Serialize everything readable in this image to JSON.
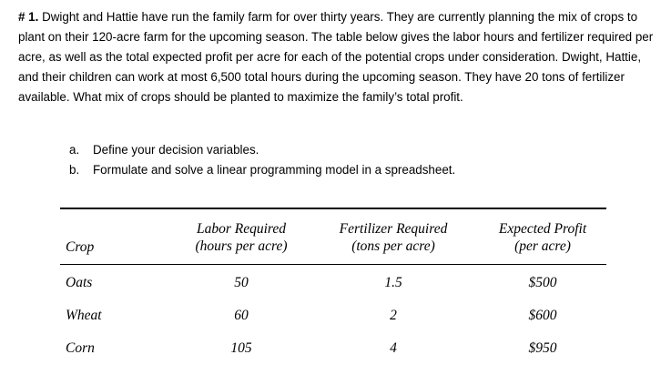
{
  "problem": {
    "number": "# 1.",
    "text": "Dwight and Hattie have run the family farm for over thirty years. They are currently planning the mix of crops to plant on their 120-acre farm for the upcoming season. The table below gives the labor hours and fertilizer required per acre, as well as the total expected profit per acre for each of the potential crops under consideration. Dwight, Hattie, and their children can work at most 6,500 total hours during the upcoming season. They have 20 tons of fertilizer available. What mix of crops should be planted to maximize the family’s total profit."
  },
  "items": [
    {
      "letter": "a.",
      "text": "Define your decision variables."
    },
    {
      "letter": "b.",
      "text": "Formulate and solve a linear programming model in a spreadsheet."
    }
  ],
  "table": {
    "headers": {
      "crop": "Crop",
      "labor_line1": "Labor Required",
      "labor_line2": "(hours per acre)",
      "fert_line1": "Fertilizer Required",
      "fert_line2": "(tons per acre)",
      "profit_line1": "Expected Profit",
      "profit_line2": "(per acre)"
    },
    "rows": [
      {
        "crop": "Oats",
        "labor": "50",
        "fertilizer": "1.5",
        "profit": "$500"
      },
      {
        "crop": "Wheat",
        "labor": "60",
        "fertilizer": "2",
        "profit": "$600"
      },
      {
        "crop": "Corn",
        "labor": "105",
        "fertilizer": "4",
        "profit": "$950"
      }
    ]
  }
}
